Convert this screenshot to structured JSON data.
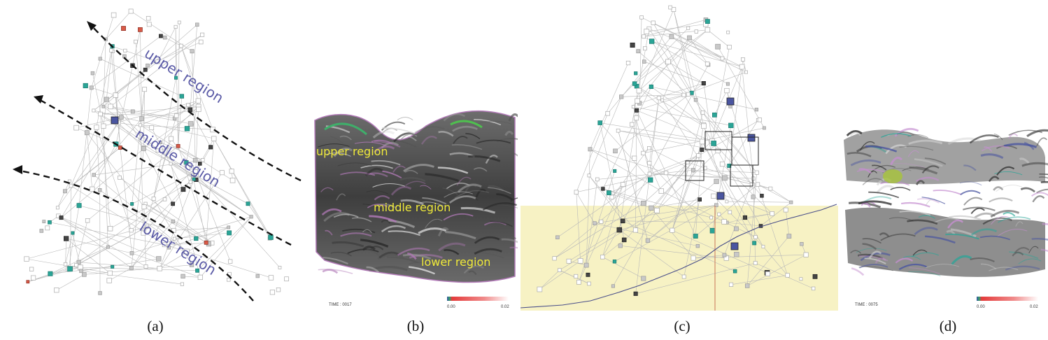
{
  "figure": {
    "panels": [
      {
        "id": "a",
        "caption": "(a)",
        "kind": "graph",
        "region_labels": [
          "upper region",
          "middle region",
          "lower region"
        ],
        "region_label_color": "#5a5aa6"
      },
      {
        "id": "b",
        "caption": "(b)",
        "kind": "volume-render",
        "region_labels": [
          "upper region",
          "middle region",
          "lower region"
        ],
        "region_label_color": "#f0ea3a",
        "time_label": "TIME : 0017",
        "colorbar": {
          "min": "0.00",
          "max": "0.02"
        }
      },
      {
        "id": "c",
        "caption": "(c)",
        "kind": "graph-with-selection",
        "highlight_color": "#f7f2c4"
      },
      {
        "id": "d",
        "caption": "(d)",
        "kind": "volume-render",
        "time_label": "TIME : 0075",
        "colorbar": {
          "min": "0.00",
          "max": "0.02"
        }
      }
    ],
    "node_colors": {
      "default": "#c8c8c8",
      "teal": "#2aa597",
      "red": "#d95a47",
      "blue": "#4a55a0",
      "dark": "#444444"
    }
  }
}
